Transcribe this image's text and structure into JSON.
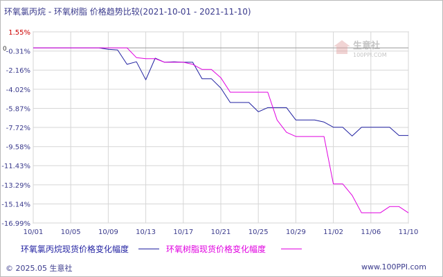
{
  "title": "环氧氯丙烷 - 环氧树脂 价格趋势比较(2021-10-01 - 2021-11-10)",
  "watermark": {
    "cn": "生意社",
    "en": "100PPI.COM"
  },
  "footer": {
    "copyright": "© 2025.05 生意社",
    "site": "www.100PPI.com"
  },
  "zero_label": "0",
  "colors": {
    "series1": "#1f1fa0",
    "series2": "#e000e0",
    "axis_text": "#3a3a8c",
    "top_tick": "#cc0000",
    "grid": "#d6d6d6",
    "zero_line": "#999999"
  },
  "chart_data": {
    "type": "line",
    "title": "环氧氯丙烷 - 环氧树脂 价格趋势比较(2021-10-01 - 2021-11-10)",
    "xlabel": "",
    "ylabel": "",
    "xlim": [
      "2021-10-01",
      "2021-11-10"
    ],
    "ylim": [
      -16.99,
      1.55
    ],
    "y_ticks": [
      1.55,
      -0.31,
      -2.16,
      -4.02,
      -5.87,
      -7.72,
      -9.58,
      -11.43,
      -13.29,
      -15.14,
      -16.99
    ],
    "y_tick_labels": [
      "1.55%",
      "-0.31%",
      "-2.16%",
      "-4.02%",
      "-5.87%",
      "-7.72%",
      "-9.58%",
      "-11.43%",
      "-13.29%",
      "-15.14%",
      "-16.99%"
    ],
    "x_tick_labels": [
      "10/01",
      "10/05",
      "10/09",
      "10/13",
      "10/17",
      "10/21",
      "10/25",
      "10/29",
      "11/02",
      "11/06",
      "11/10"
    ],
    "grid": true,
    "legend_position": "bottom",
    "series": [
      {
        "name": "环氧氯丙烷现货价格变化幅度",
        "x": [
          "2021-10-01",
          "2021-10-02",
          "2021-10-03",
          "2021-10-04",
          "2021-10-05",
          "2021-10-06",
          "2021-10-07",
          "2021-10-08",
          "2021-10-09",
          "2021-10-10",
          "2021-10-11",
          "2021-10-12",
          "2021-10-13",
          "2021-10-14",
          "2021-10-15",
          "2021-10-16",
          "2021-10-17",
          "2021-10-18",
          "2021-10-19",
          "2021-10-20",
          "2021-10-21",
          "2021-10-22",
          "2021-10-23",
          "2021-10-24",
          "2021-10-25",
          "2021-10-26",
          "2021-10-27",
          "2021-10-28",
          "2021-10-29",
          "2021-10-30",
          "2021-10-31",
          "2021-11-01",
          "2021-11-02",
          "2021-11-03",
          "2021-11-04",
          "2021-11-05",
          "2021-11-06",
          "2021-11-07",
          "2021-11-08",
          "2021-11-09",
          "2021-11-10"
        ],
        "y": [
          0,
          0,
          0,
          0,
          0,
          0,
          0,
          0,
          -0.15,
          -0.2,
          -1.6,
          -1.35,
          -3.1,
          -1.0,
          -1.4,
          -1.35,
          -1.4,
          -1.4,
          -3.0,
          -3.0,
          -3.9,
          -5.3,
          -5.3,
          -5.3,
          -6.2,
          -5.8,
          -5.8,
          -5.8,
          -7.0,
          -7.0,
          -7.0,
          -7.2,
          -7.7,
          -7.7,
          -8.55,
          -7.7,
          -7.7,
          -7.7,
          -7.7,
          -8.5,
          -8.5
        ]
      },
      {
        "name": "环氧树脂现货价格变化幅度",
        "x": [
          "2021-10-01",
          "2021-10-02",
          "2021-10-03",
          "2021-10-04",
          "2021-10-05",
          "2021-10-06",
          "2021-10-07",
          "2021-10-08",
          "2021-10-09",
          "2021-10-10",
          "2021-10-11",
          "2021-10-12",
          "2021-10-13",
          "2021-10-14",
          "2021-10-15",
          "2021-10-16",
          "2021-10-17",
          "2021-10-18",
          "2021-10-19",
          "2021-10-20",
          "2021-10-21",
          "2021-10-22",
          "2021-10-23",
          "2021-10-24",
          "2021-10-25",
          "2021-10-26",
          "2021-10-27",
          "2021-10-28",
          "2021-10-29",
          "2021-10-30",
          "2021-10-31",
          "2021-11-01",
          "2021-11-02",
          "2021-11-03",
          "2021-11-04",
          "2021-11-05",
          "2021-11-06",
          "2021-11-07",
          "2021-11-08",
          "2021-11-09",
          "2021-11-10"
        ],
        "y": [
          0,
          0,
          0,
          0,
          0,
          0,
          0,
          0,
          0,
          0,
          0,
          -0.95,
          -1.05,
          -1.05,
          -1.4,
          -1.4,
          -1.4,
          -1.6,
          -2.1,
          -2.1,
          -2.9,
          -4.3,
          -4.3,
          -4.3,
          -4.3,
          -4.3,
          -7.0,
          -8.2,
          -8.6,
          -8.6,
          -8.6,
          -8.6,
          -13.2,
          -13.2,
          -14.3,
          -16.0,
          -16.0,
          -16.0,
          -15.4,
          -15.4,
          -16.0
        ]
      }
    ]
  }
}
